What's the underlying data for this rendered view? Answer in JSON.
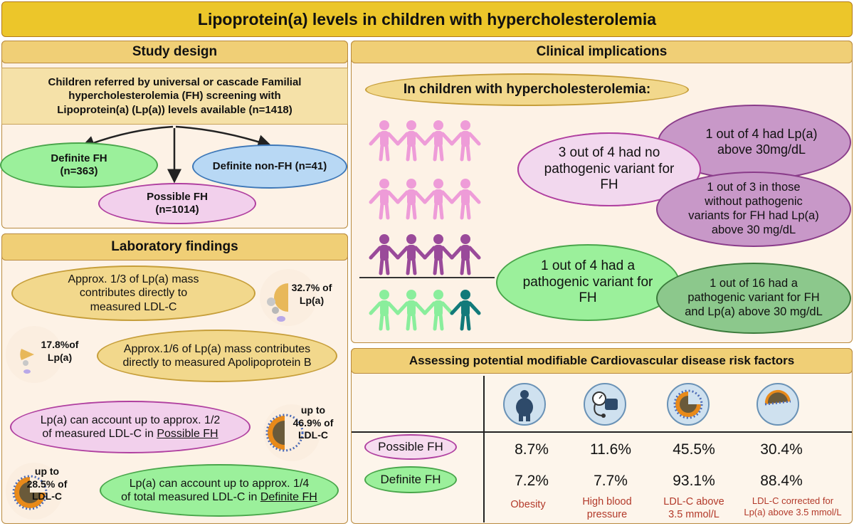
{
  "title": "Lipoprotein(a) levels in children with hypercholesterolemia",
  "study_design": {
    "header": "Study design",
    "intro_lines": [
      "Children referred by universal or cascade Familial",
      "hypercholesterolemia (FH) screening with",
      "Lipoprotein(a) (Lp(a)) levels available (n=1418)"
    ],
    "definite_fh": [
      "Definite FH",
      "(n=363)"
    ],
    "possible_fh": [
      "Possible  FH",
      "(n=1014)"
    ],
    "definite_non_fh": "Definite non-FH (n=41)"
  },
  "lab_findings": {
    "header": "Laboratory findings",
    "f1": [
      "Approx. 1/3 of Lp(a) mass",
      "contributes directly to",
      "measured LDL-C"
    ],
    "f1_pct": [
      "32.7% of",
      "Lp(a)"
    ],
    "f2": [
      "Approx.1/6 of Lp(a) mass contributes",
      "directly to measured Apolipoprotein B"
    ],
    "f2_pct": [
      "17.8%of",
      "Lp(a)"
    ],
    "f3_line1": "Lp(a) can account up to approx. 1/2",
    "f3_line2_prefix": "of measured LDL-C in ",
    "f3_link": "Possible FH",
    "f3_pct": [
      "up to",
      "46.9% of",
      "LDL-C"
    ],
    "f4_line1": "Lp(a) can account up to approx. 1/4",
    "f4_line2_prefix": "of total measured LDL-C in ",
    "f4_link": "Definite FH",
    "f4_pct": [
      "up to",
      "28.5% of",
      "LDL-C"
    ]
  },
  "clinical": {
    "header": "Clinical implications",
    "intro": "In children with hypercholesterolemia:",
    "e1": [
      "3 out of 4 had no",
      "pathogenic variant for",
      "FH"
    ],
    "e2": [
      "1 out of 4 had Lp(a)",
      "above 30mg/dL"
    ],
    "e3": [
      "1 out of 3 in those",
      "without pathogenic",
      "variants for FH had  Lp(a)",
      "above 30 mg/dL"
    ],
    "e4": [
      "1 out of 4 had a",
      "pathogenic variant for",
      "FH"
    ],
    "e5": [
      "1 out of 16 had a",
      "pathogenic variant for FH",
      "and Lp(a) above 30 mg/dL"
    ]
  },
  "risk": {
    "header": "Assessing potential modifiable Cardiovascular disease risk factors",
    "row1": "Possible FH",
    "row2": "Definite FH",
    "possible": [
      "8.7%",
      "11.6%",
      "45.5%",
      "30.4%"
    ],
    "definite": [
      "7.2%",
      "7.7%",
      "93.1%",
      "88.4%"
    ],
    "labels": [
      [
        "Obesity"
      ],
      [
        "High blood",
        "pressure"
      ],
      [
        "LDL-C above",
        "3.5 mmol/L"
      ],
      [
        "LDL-C corrected for",
        "Lp(a) above 3.5 mmol/L"
      ]
    ]
  },
  "colors": {
    "pink": "#ee9cd8",
    "purple": "#9a4a9a",
    "green": "#8aee9c",
    "teal": "#127a7a"
  }
}
